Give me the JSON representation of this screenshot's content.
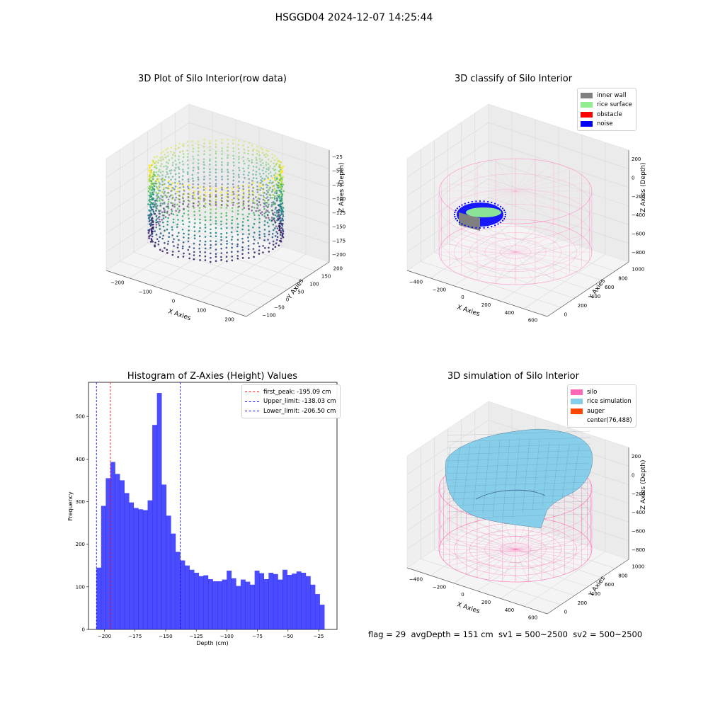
{
  "figure": {
    "title": "HSGGD04 2024-12-07 14:25:44"
  },
  "footer": {
    "text": "flag = 29  avgDepth = 151 cm  sv1 = 500~2500  sv2 = 500~2500"
  },
  "chart_data": [
    {
      "type": "scatter",
      "title": "3D Plot of Silo Interior(row data)",
      "xlabel": "X Axies",
      "ylabel": "Y Axies",
      "zlabel": "Z Axies (Depth)",
      "xticks": [
        -200,
        -100,
        0,
        100,
        200
      ],
      "yticks": [
        -100,
        -50,
        0,
        50,
        100,
        150,
        200
      ],
      "zticks": [
        -25,
        -50,
        -75,
        -100,
        -125,
        -150,
        -175,
        -200
      ],
      "xlim": [
        -260,
        260
      ],
      "ylim": [
        -120,
        230
      ],
      "zlim": [
        -215,
        -15
      ],
      "colormap": "viridis"
    },
    {
      "type": "scatter",
      "title": "3D classify of Silo Interior",
      "xlabel": "X Axies",
      "ylabel": "Y Axies",
      "zlabel": "Z Axies (Depth)",
      "xticks": [
        -400,
        -200,
        0,
        200,
        400,
        600
      ],
      "yticks": [
        0,
        200,
        400,
        600,
        800,
        1000
      ],
      "zticks": [
        200,
        0,
        -200,
        -400,
        -600,
        -800
      ],
      "legend": [
        {
          "label": "inner wall",
          "color": "#808080"
        },
        {
          "label": "rice surface",
          "color": "#90ee90"
        },
        {
          "label": "obstacle",
          "color": "#ff0000"
        },
        {
          "label": "noise",
          "color": "#0000ff"
        }
      ],
      "legend_position": "top-right"
    },
    {
      "type": "bar",
      "title": "Histogram of Z-Axies (Height) Values",
      "xlabel": "Depth (cm)",
      "ylabel": "Frequency",
      "xlim": [
        -213,
        -10
      ],
      "ylim": [
        0,
        580
      ],
      "xticks": [
        -200,
        -175,
        -150,
        -125,
        -100,
        -75,
        -50,
        -25
      ],
      "yticks": [
        0,
        100,
        200,
        300,
        400,
        500
      ],
      "bins": {
        "start": -206.5,
        "width": 3.8
      },
      "values": [
        145,
        290,
        355,
        393,
        365,
        350,
        320,
        298,
        285,
        282,
        280,
        303,
        480,
        555,
        340,
        267,
        225,
        182,
        162,
        150,
        140,
        133,
        125,
        127,
        118,
        113,
        113,
        117,
        138,
        120,
        102,
        117,
        112,
        105,
        138,
        132,
        118,
        133,
        130,
        117,
        140,
        128,
        131,
        136,
        133,
        125,
        105,
        83,
        58
      ],
      "color": "#0000ff",
      "vlines": [
        {
          "x": -195.09,
          "color": "#ff0000",
          "label": "first_peak: -195.09 cm"
        },
        {
          "x": -138.03,
          "color": "#0000ff",
          "label": "Upper_limit: -138.03 cm"
        },
        {
          "x": -206.5,
          "color": "#0000ff",
          "label": "Lower_limit: -206.50 cm"
        }
      ],
      "legend_position": "top-right"
    },
    {
      "type": "area",
      "title": "3D simulation of Silo Interior",
      "xlabel": "X Axies",
      "ylabel": "Y Axies",
      "zlabel": "Z Axies (Depth)",
      "xticks": [
        -400,
        -200,
        0,
        200,
        400,
        600
      ],
      "yticks": [
        0,
        200,
        400,
        600,
        800,
        1000
      ],
      "zticks": [
        200,
        0,
        -200,
        -400,
        -600,
        -800
      ],
      "legend": [
        {
          "label": "silo",
          "color": "#ff69b4"
        },
        {
          "label": "rice simulation",
          "color": "#87ceeb"
        },
        {
          "label": "auger",
          "color": "#ff4500"
        },
        {
          "label": "center(76,488)",
          "color": ""
        }
      ],
      "legend_position": "top-right"
    }
  ]
}
